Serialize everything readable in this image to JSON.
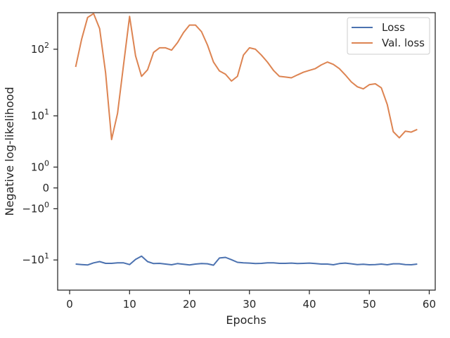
{
  "chart_data": {
    "type": "line",
    "title": "",
    "xlabel": "Epochs",
    "ylabel": "Negative log-likelihood",
    "xlim": [
      -2,
      61
    ],
    "x_ticks": [
      0,
      10,
      20,
      30,
      40,
      50,
      60
    ],
    "y_scale": "symlog",
    "ylim": [
      -29,
      340
    ],
    "y_ticks": [
      {
        "value": 100,
        "label": "10^2"
      },
      {
        "value": 10,
        "label": "10^1"
      },
      {
        "value": 1,
        "label": "10^0"
      },
      {
        "value": 0,
        "label": "0"
      },
      {
        "value": -1,
        "label": "-10^0"
      },
      {
        "value": -10,
        "label": "-10^1"
      }
    ],
    "grid": false,
    "legend_position": "top-right",
    "x": [
      1,
      2,
      3,
      4,
      5,
      6,
      7,
      8,
      9,
      10,
      11,
      12,
      13,
      14,
      15,
      16,
      17,
      18,
      19,
      20,
      21,
      22,
      23,
      24,
      25,
      26,
      27,
      28,
      29,
      30,
      31,
      32,
      33,
      34,
      35,
      36,
      37,
      38,
      39,
      40,
      41,
      42,
      43,
      44,
      45,
      46,
      47,
      48,
      49,
      50,
      51,
      52,
      53,
      54,
      55,
      56,
      57,
      58
    ],
    "series": [
      {
        "name": "Loss",
        "color": "#4c72b0",
        "values": [
          -11.6,
          -11.8,
          -12.0,
          -11.1,
          -10.6,
          -11.3,
          -11.3,
          -11.1,
          -11.1,
          -11.8,
          -9.8,
          -8.7,
          -10.6,
          -11.4,
          -11.3,
          -11.6,
          -11.9,
          -11.4,
          -11.7,
          -12.0,
          -11.6,
          -11.4,
          -11.5,
          -12.1,
          -9.3,
          -9.1,
          -9.9,
          -10.9,
          -11.1,
          -11.2,
          -11.4,
          -11.3,
          -11.1,
          -11.1,
          -11.3,
          -11.3,
          -11.2,
          -11.4,
          -11.3,
          -11.2,
          -11.4,
          -11.6,
          -11.6,
          -11.9,
          -11.4,
          -11.2,
          -11.5,
          -11.8,
          -11.7,
          -11.9,
          -11.8,
          -11.6,
          -11.9,
          -11.5,
          -11.5,
          -11.8,
          -11.9,
          -11.6
        ]
      },
      {
        "name": "Val. loss",
        "color": "#dd8452",
        "values": [
          55,
          140,
          290,
          330,
          200,
          45,
          4.0,
          11,
          60,
          300,
          80,
          40,
          50,
          90,
          105,
          105,
          97,
          125,
          175,
          225,
          225,
          180,
          115,
          65,
          48,
          43,
          34,
          40,
          82,
          105,
          100,
          82,
          65,
          49,
          40,
          39,
          38,
          42,
          46,
          49,
          52,
          59,
          65,
          60,
          52,
          42,
          33,
          28,
          26,
          30,
          31,
          27,
          15,
          5.5,
          4.3,
          5.6,
          5.4,
          6.0
        ]
      }
    ]
  }
}
